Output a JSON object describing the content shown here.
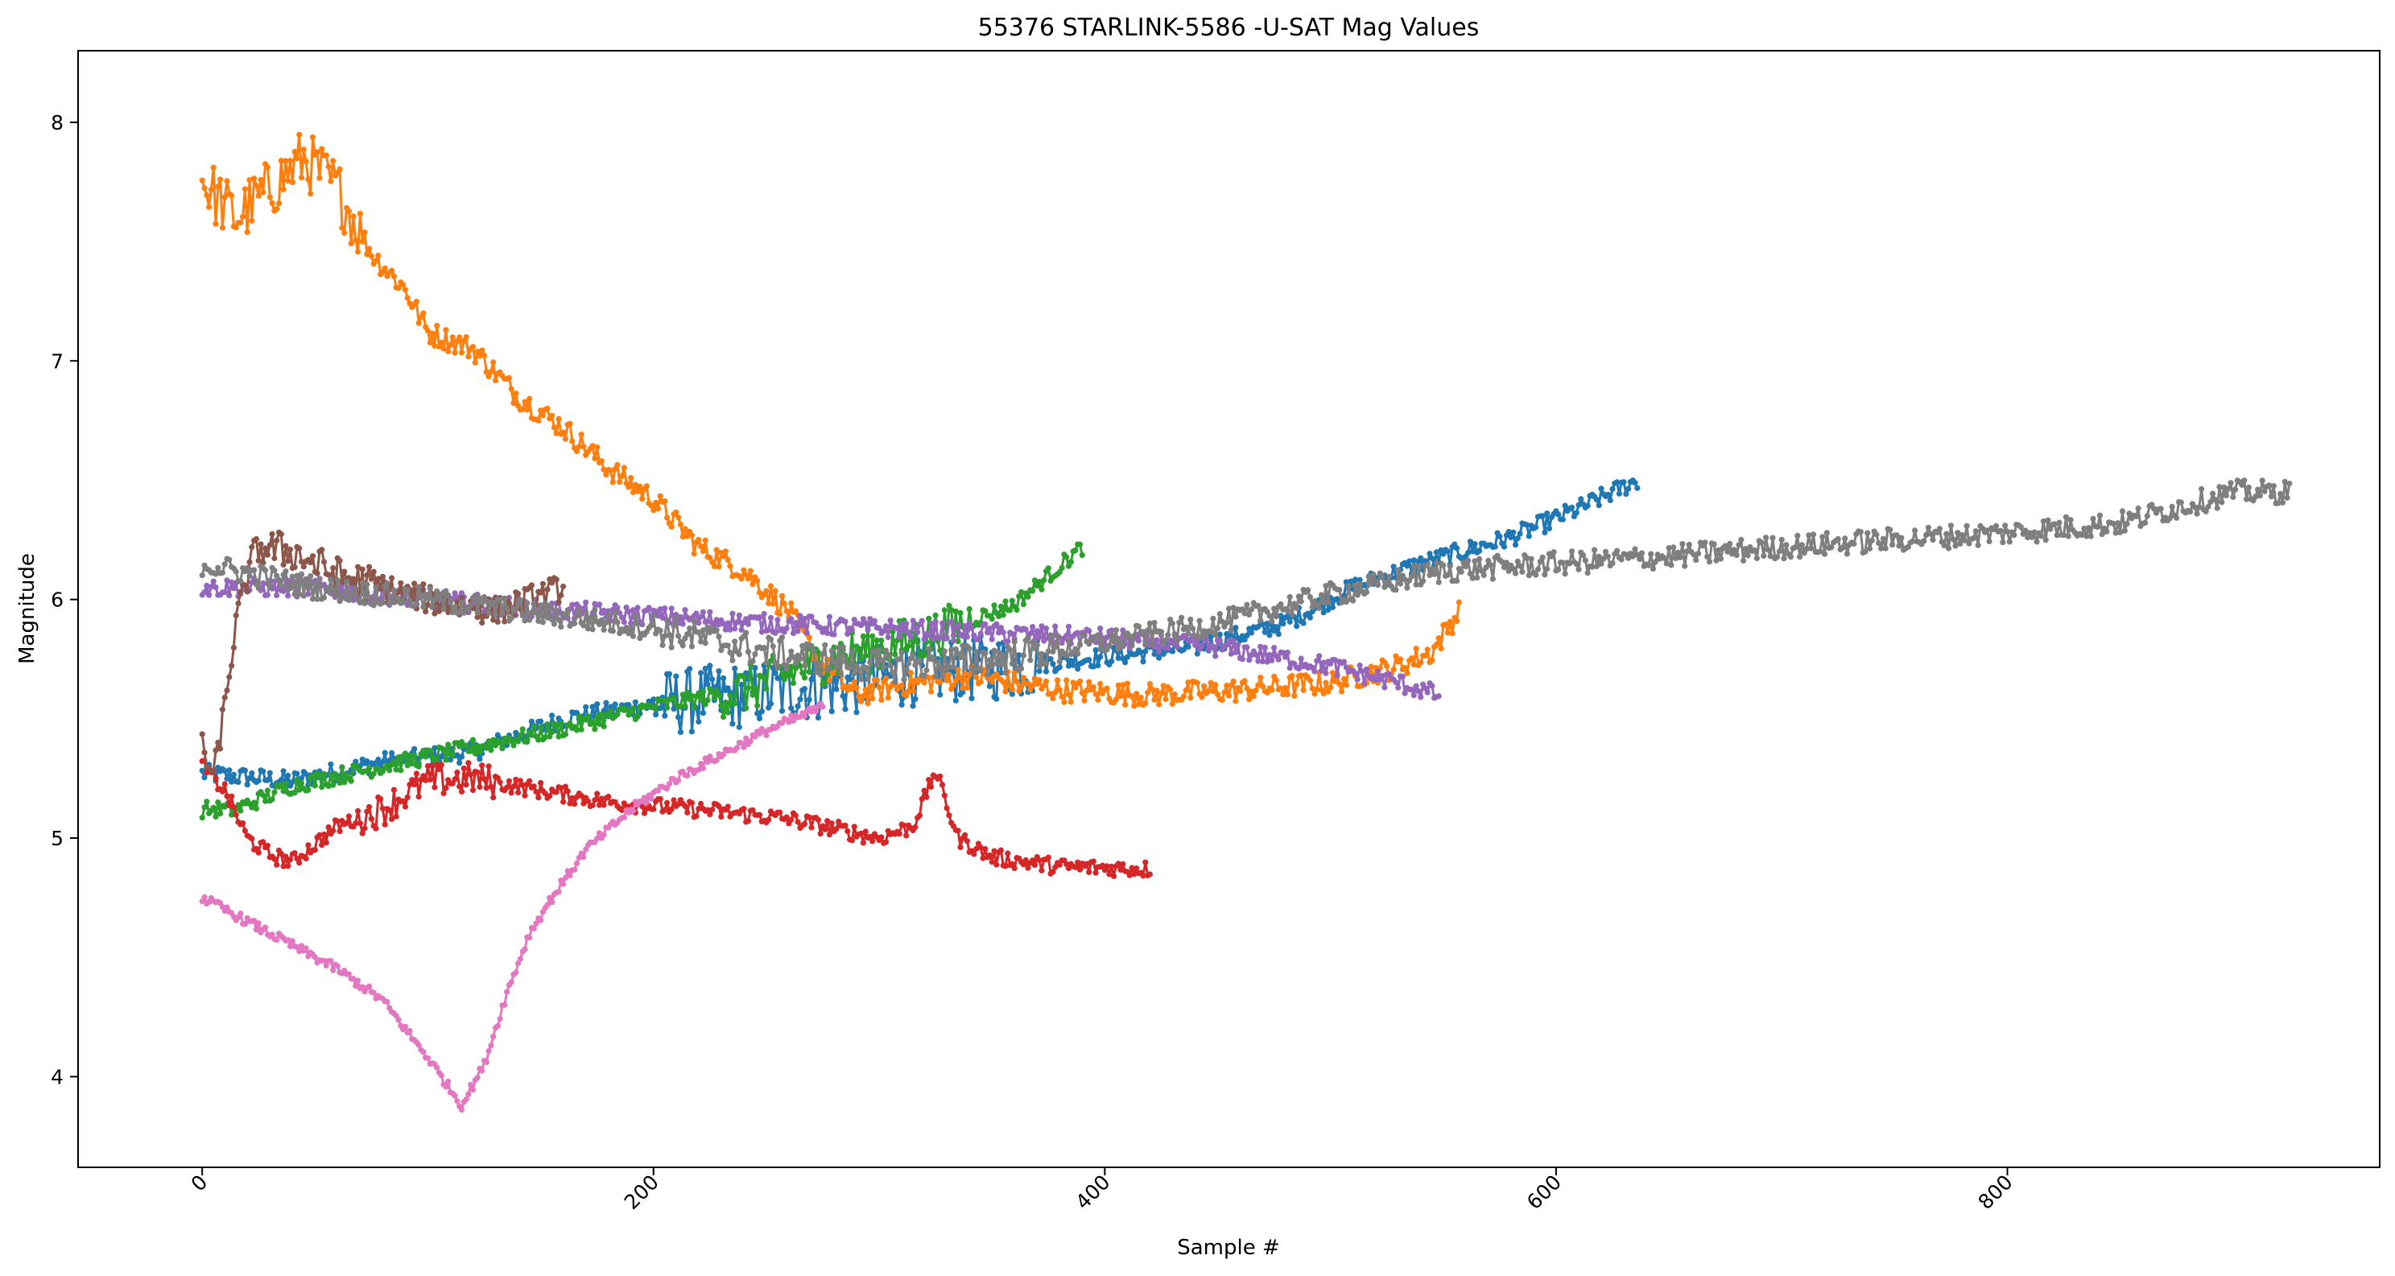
{
  "chart_data": {
    "type": "line",
    "title": "55376 STARLINK-5586 -U-SAT Mag Values",
    "xlabel": "Sample #",
    "ylabel": "Magnitude",
    "xlim": [
      -55,
      965
    ],
    "ylim": [
      3.62,
      8.3
    ],
    "xticks": [
      0,
      200,
      400,
      600,
      800
    ],
    "yticks": [
      4,
      5,
      6,
      7,
      8
    ],
    "grid": false,
    "legend": "none",
    "series": [
      {
        "color": "#1f77b4",
        "n": 636,
        "anchors": [
          [
            0,
            5.27
          ],
          [
            40,
            5.24
          ],
          [
            80,
            5.32
          ],
          [
            120,
            5.36
          ],
          [
            160,
            5.5
          ],
          [
            200,
            5.56
          ],
          [
            240,
            5.6
          ],
          [
            280,
            5.64
          ],
          [
            320,
            5.7
          ],
          [
            360,
            5.72
          ],
          [
            400,
            5.76
          ],
          [
            440,
            5.8
          ],
          [
            480,
            5.9
          ],
          [
            510,
            6.05
          ],
          [
            540,
            6.15
          ],
          [
            580,
            6.26
          ],
          [
            610,
            6.38
          ],
          [
            636,
            6.5
          ]
        ],
        "noise": 0.04,
        "wild": [
          [
            200,
            370,
            0.14
          ]
        ]
      },
      {
        "color": "#ff7f0e",
        "n": 557,
        "anchors": [
          [
            0,
            7.75
          ],
          [
            15,
            7.6
          ],
          [
            30,
            7.72
          ],
          [
            45,
            7.85
          ],
          [
            60,
            7.72
          ],
          [
            75,
            7.45
          ],
          [
            90,
            7.3
          ],
          [
            100,
            7.12
          ],
          [
            120,
            7.05
          ],
          [
            140,
            6.85
          ],
          [
            160,
            6.72
          ],
          [
            180,
            6.55
          ],
          [
            200,
            6.42
          ],
          [
            220,
            6.22
          ],
          [
            240,
            6.12
          ],
          [
            260,
            5.95
          ],
          [
            275,
            5.72
          ],
          [
            290,
            5.6
          ],
          [
            310,
            5.64
          ],
          [
            340,
            5.68
          ],
          [
            380,
            5.62
          ],
          [
            420,
            5.6
          ],
          [
            460,
            5.62
          ],
          [
            500,
            5.65
          ],
          [
            530,
            5.72
          ],
          [
            545,
            5.78
          ],
          [
            557,
            5.95
          ]
        ],
        "noise": 0.05,
        "wild": [
          [
            0,
            70,
            0.13
          ]
        ]
      },
      {
        "color": "#2ca02c",
        "n": 390,
        "anchors": [
          [
            0,
            5.12
          ],
          [
            15,
            5.12
          ],
          [
            40,
            5.22
          ],
          [
            80,
            5.3
          ],
          [
            120,
            5.38
          ],
          [
            160,
            5.46
          ],
          [
            200,
            5.55
          ],
          [
            240,
            5.62
          ],
          [
            280,
            5.76
          ],
          [
            320,
            5.84
          ],
          [
            360,
            5.98
          ],
          [
            390,
            6.22
          ]
        ],
        "noise": 0.035,
        "wild": [
          [
            230,
            340,
            0.1
          ]
        ]
      },
      {
        "color": "#d62728",
        "n": 420,
        "anchors": [
          [
            0,
            5.3
          ],
          [
            10,
            5.2
          ],
          [
            20,
            5.0
          ],
          [
            30,
            4.93
          ],
          [
            40,
            4.9
          ],
          [
            60,
            5.05
          ],
          [
            80,
            5.12
          ],
          [
            100,
            5.24
          ],
          [
            120,
            5.25
          ],
          [
            150,
            5.2
          ],
          [
            180,
            5.15
          ],
          [
            220,
            5.12
          ],
          [
            260,
            5.08
          ],
          [
            300,
            5.0
          ],
          [
            315,
            5.05
          ],
          [
            325,
            5.28
          ],
          [
            335,
            5.0
          ],
          [
            350,
            4.92
          ],
          [
            380,
            4.88
          ],
          [
            420,
            4.87
          ]
        ],
        "noise": 0.035,
        "wild": [
          [
            70,
            130,
            0.07
          ]
        ]
      },
      {
        "color": "#9467bd",
        "n": 548,
        "anchors": [
          [
            0,
            6.05
          ],
          [
            50,
            6.05
          ],
          [
            100,
            6.0
          ],
          [
            150,
            5.96
          ],
          [
            200,
            5.93
          ],
          [
            250,
            5.9
          ],
          [
            300,
            5.88
          ],
          [
            350,
            5.86
          ],
          [
            400,
            5.84
          ],
          [
            450,
            5.8
          ],
          [
            500,
            5.72
          ],
          [
            530,
            5.65
          ],
          [
            548,
            5.6
          ]
        ],
        "noise": 0.04
      },
      {
        "color": "#8c564b",
        "n": 160,
        "anchors": [
          [
            0,
            5.38
          ],
          [
            5,
            5.25
          ],
          [
            10,
            5.55
          ],
          [
            15,
            5.9
          ],
          [
            20,
            6.1
          ],
          [
            25,
            6.22
          ],
          [
            40,
            6.2
          ],
          [
            60,
            6.1
          ],
          [
            80,
            6.05
          ],
          [
            100,
            6.0
          ],
          [
            130,
            5.95
          ],
          [
            160,
            6.05
          ]
        ],
        "noise": 0.06,
        "wild": [
          [
            20,
            80,
            0.08
          ]
        ]
      },
      {
        "color": "#e377c2",
        "n": 275,
        "anchors": [
          [
            0,
            4.75
          ],
          [
            20,
            4.65
          ],
          [
            40,
            4.55
          ],
          [
            60,
            4.45
          ],
          [
            80,
            4.32
          ],
          [
            100,
            4.08
          ],
          [
            115,
            3.88
          ],
          [
            125,
            4.05
          ],
          [
            135,
            4.35
          ],
          [
            145,
            4.6
          ],
          [
            155,
            4.75
          ],
          [
            170,
            4.95
          ],
          [
            190,
            5.12
          ],
          [
            210,
            5.25
          ],
          [
            230,
            5.35
          ],
          [
            250,
            5.45
          ],
          [
            275,
            5.55
          ]
        ],
        "noise": 0.02
      },
      {
        "color": "#7f7f7f",
        "n": 925,
        "anchors": [
          [
            0,
            6.15
          ],
          [
            50,
            6.05
          ],
          [
            100,
            6.0
          ],
          [
            200,
            5.88
          ],
          [
            250,
            5.78
          ],
          [
            300,
            5.72
          ],
          [
            350,
            5.75
          ],
          [
            400,
            5.82
          ],
          [
            450,
            5.9
          ],
          [
            500,
            6.02
          ],
          [
            550,
            6.12
          ],
          [
            600,
            6.15
          ],
          [
            650,
            6.18
          ],
          [
            700,
            6.22
          ],
          [
            750,
            6.25
          ],
          [
            800,
            6.28
          ],
          [
            850,
            6.32
          ],
          [
            900,
            6.45
          ],
          [
            925,
            6.45
          ]
        ],
        "noise": 0.05,
        "wild": [
          [
            200,
            380,
            0.07
          ]
        ]
      }
    ]
  }
}
